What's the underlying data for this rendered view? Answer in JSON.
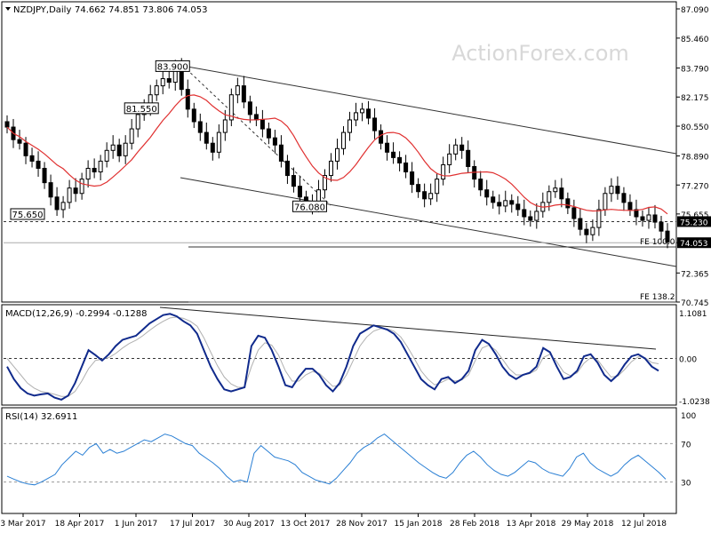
{
  "chart_data": [
    {
      "panel": "price",
      "type": "candlestick",
      "title": "NZDJPY,Daily",
      "ohlc_header": "74.662 74.851 73.806 74.053",
      "watermark": "ActionForex.com",
      "y_ticks": [
        "87.090",
        "85.460",
        "83.790",
        "82.175",
        "80.550",
        "78.890",
        "77.270",
        "75.655",
        "74.053",
        "72.365",
        "70.745"
      ],
      "ylim": [
        70.745,
        87.09
      ],
      "x_ticks": [
        "3 Mar 2017",
        "18 Apr 2017",
        "1 Jun 2017",
        "17 Jul 2017",
        "30 Aug 2017",
        "13 Oct 2017",
        "28 Nov 2017",
        "15 Jan 2018",
        "28 Feb 2018",
        "13 Apr 2018",
        "29 May 2018",
        "12 Jul 2018"
      ],
      "price_labels": [
        {
          "text": "83.900",
          "value": 83.9
        },
        {
          "text": "81.550",
          "value": 81.55
        },
        {
          "text": "76.080",
          "value": 76.08
        },
        {
          "text": "75.650",
          "value": 75.65
        }
      ],
      "right_labels": [
        {
          "text": "75.230",
          "value": 75.23,
          "color": "#000000"
        },
        {
          "text": "74.053",
          "value": 74.053,
          "color": "#000000"
        }
      ],
      "fe_labels": [
        "FE 100.0",
        "FE 138.2"
      ],
      "current_price": 74.053,
      "horizontal_level": 75.23,
      "moving_average": {
        "name": "MA",
        "color": "#e03030"
      },
      "close_series": [
        80.5,
        79.8,
        79.6,
        78.9,
        78.6,
        78.2,
        77.4,
        76.6,
        75.9,
        76.3,
        77.1,
        76.8,
        77.6,
        78.2,
        78.0,
        78.6,
        79.2,
        79.5,
        78.9,
        79.6,
        80.4,
        81.2,
        81.6,
        82.3,
        82.8,
        83.2,
        83.0,
        83.9,
        82.6,
        81.5,
        80.8,
        80.2,
        79.6,
        79.1,
        80.2,
        80.9,
        82.3,
        82.8,
        81.9,
        81.2,
        80.9,
        80.4,
        79.9,
        79.5,
        78.6,
        77.8,
        77.2,
        76.6,
        76.3,
        76.1,
        77.0,
        77.8,
        78.6,
        79.3,
        80.2,
        80.9,
        81.3,
        81.5,
        81.0,
        80.3,
        79.6,
        79.1,
        78.8,
        78.5,
        78.0,
        77.3,
        76.9,
        76.5,
        76.8,
        77.6,
        78.4,
        79.0,
        79.5,
        79.2,
        78.3,
        77.6,
        77.0,
        76.6,
        76.3,
        76.1,
        76.4,
        76.2,
        75.9,
        75.5,
        75.3,
        75.8,
        76.3,
        76.9,
        77.1,
        76.5,
        76.0,
        75.4,
        74.8,
        74.5,
        74.9,
        75.9,
        76.8,
        77.2,
        76.8,
        76.3,
        75.9,
        75.5,
        75.3,
        75.6,
        75.2,
        74.7,
        74.1
      ]
    },
    {
      "panel": "macd",
      "type": "line",
      "title": "MACD(12,26,9) -0.2994 -0.1288",
      "y_ticks": [
        "1.1081",
        "0.00",
        "-1.0238"
      ],
      "ylim": [
        -1.0238,
        1.1081
      ],
      "series": [
        {
          "name": "MACD",
          "color": "#102a8c",
          "values": [
            -0.2,
            -0.5,
            -0.72,
            -0.85,
            -0.9,
            -0.87,
            -0.85,
            -0.95,
            -1.0,
            -0.9,
            -0.6,
            -0.2,
            0.2,
            0.08,
            -0.05,
            0.1,
            0.3,
            0.45,
            0.5,
            0.55,
            0.7,
            0.85,
            0.95,
            1.05,
            1.08,
            1.02,
            0.9,
            0.8,
            0.6,
            0.2,
            -0.2,
            -0.5,
            -0.75,
            -0.8,
            -0.75,
            -0.7,
            0.3,
            0.55,
            0.5,
            0.2,
            -0.2,
            -0.65,
            -0.7,
            -0.45,
            -0.25,
            -0.25,
            -0.4,
            -0.65,
            -0.8,
            -0.6,
            -0.2,
            0.3,
            0.6,
            0.7,
            0.8,
            0.75,
            0.7,
            0.6,
            0.4,
            0.1,
            -0.2,
            -0.5,
            -0.65,
            -0.75,
            -0.5,
            -0.45,
            -0.6,
            -0.5,
            -0.3,
            0.2,
            0.45,
            0.35,
            0.1,
            -0.2,
            -0.4,
            -0.5,
            -0.4,
            -0.35,
            -0.2,
            0.25,
            0.15,
            -0.2,
            -0.5,
            -0.45,
            -0.3,
            0.05,
            0.1,
            -0.1,
            -0.4,
            -0.55,
            -0.4,
            -0.15,
            0.05,
            0.1,
            0.0,
            -0.2,
            -0.3
          ]
        },
        {
          "name": "Signal",
          "color": "#b0b0b0",
          "values": [
            0.0,
            -0.2,
            -0.4,
            -0.6,
            -0.72,
            -0.8,
            -0.83,
            -0.87,
            -0.92,
            -0.92,
            -0.8,
            -0.55,
            -0.25,
            -0.05,
            -0.02,
            0.02,
            0.12,
            0.25,
            0.36,
            0.44,
            0.55,
            0.68,
            0.8,
            0.9,
            0.98,
            1.0,
            0.97,
            0.9,
            0.78,
            0.5,
            0.15,
            -0.18,
            -0.45,
            -0.62,
            -0.7,
            -0.7,
            -0.2,
            0.2,
            0.38,
            0.32,
            0.08,
            -0.3,
            -0.55,
            -0.55,
            -0.4,
            -0.32,
            -0.36,
            -0.52,
            -0.68,
            -0.65,
            -0.4,
            -0.05,
            0.3,
            0.52,
            0.66,
            0.72,
            0.72,
            0.66,
            0.52,
            0.28,
            0.0,
            -0.3,
            -0.5,
            -0.64,
            -0.58,
            -0.5,
            -0.55,
            -0.52,
            -0.4,
            -0.05,
            0.25,
            0.32,
            0.2,
            -0.02,
            -0.25,
            -0.4,
            -0.4,
            -0.37,
            -0.28,
            0.02,
            0.1,
            -0.08,
            -0.33,
            -0.42,
            -0.35,
            -0.12,
            0.02,
            -0.03,
            -0.25,
            -0.45,
            -0.43,
            -0.27,
            -0.08,
            0.04,
            0.02,
            -0.1,
            -0.13
          ]
        }
      ]
    },
    {
      "panel": "rsi",
      "type": "line",
      "title": "RSI(14) 32.6911",
      "y_ticks": [
        "100",
        "70",
        "30",
        "0"
      ],
      "ylim": [
        0,
        100
      ],
      "series": [
        {
          "name": "RSI",
          "color": "#2a7fd4",
          "values": [
            36,
            33,
            30,
            28,
            27,
            30,
            34,
            38,
            48,
            55,
            62,
            58,
            66,
            70,
            60,
            64,
            60,
            62,
            66,
            70,
            74,
            72,
            76,
            80,
            78,
            74,
            70,
            68,
            60,
            55,
            50,
            44,
            36,
            30,
            32,
            30,
            60,
            68,
            62,
            56,
            54,
            52,
            48,
            40,
            36,
            32,
            30,
            28,
            34,
            42,
            50,
            60,
            66,
            70,
            76,
            80,
            74,
            68,
            62,
            56,
            50,
            45,
            40,
            36,
            34,
            40,
            50,
            58,
            62,
            56,
            48,
            42,
            38,
            36,
            40,
            46,
            52,
            50,
            44,
            40,
            38,
            36,
            44,
            56,
            60,
            50,
            44,
            40,
            36,
            40,
            48,
            54,
            58,
            52,
            46,
            40,
            33
          ]
        }
      ]
    }
  ]
}
